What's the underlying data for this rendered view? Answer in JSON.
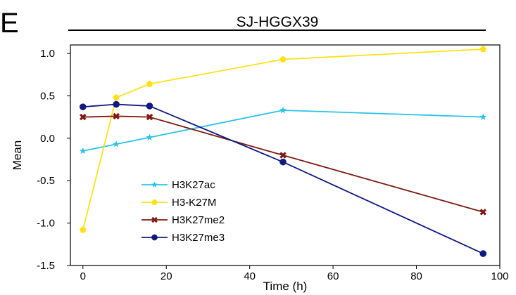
{
  "panel_letter": "E",
  "chart_data": {
    "type": "line",
    "title": "SJ-HGGX39",
    "xlabel": "Time (h)",
    "ylabel": "Mean",
    "xlim": [
      -3,
      100
    ],
    "ylim": [
      -1.5,
      1.1
    ],
    "xticks": [
      0,
      20,
      40,
      60,
      80,
      100
    ],
    "yticks": [
      1.0,
      0.5,
      0.0,
      -0.5,
      -1.0,
      -1.5
    ],
    "ytick_labels": [
      "1.0",
      "0.5",
      "0.0",
      "-0.5",
      "-1.0",
      "-1.5"
    ],
    "legend_position": "lower-left",
    "grid": false,
    "series": [
      {
        "name": "H3K27ac",
        "color": "#29c4e8",
        "marker": "star",
        "x": [
          0,
          8,
          16,
          48,
          96
        ],
        "y": [
          -0.15,
          -0.07,
          0.01,
          0.33,
          0.25
        ]
      },
      {
        "name": "H3-K27M",
        "color": "#ffe119",
        "marker": "pentagon",
        "x": [
          0,
          8,
          16,
          48,
          96
        ],
        "y": [
          -1.08,
          0.48,
          0.64,
          0.93,
          1.05
        ]
      },
      {
        "name": "H3K27me2",
        "color": "#7f1a12",
        "marker": "x",
        "x": [
          0,
          8,
          16,
          48,
          96
        ],
        "y": [
          0.25,
          0.26,
          0.25,
          -0.2,
          -0.87
        ]
      },
      {
        "name": "H3K27me3",
        "color": "#0f1a80",
        "marker": "circle",
        "x": [
          0,
          8,
          16,
          48,
          96
        ],
        "y": [
          0.37,
          0.4,
          0.38,
          -0.28,
          -1.36
        ]
      }
    ]
  }
}
